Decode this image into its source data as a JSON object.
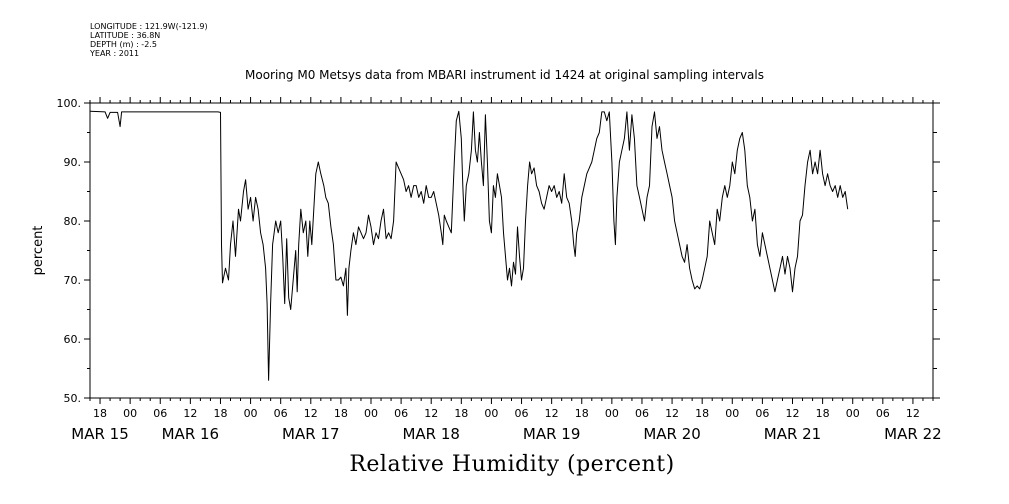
{
  "meta": {
    "longitude": "LONGITUDE : 121.9W(-121.9)",
    "latitude": "LATITUDE : 36.8N",
    "depth": "DEPTH (m) : -2.5",
    "year": "YEAR : 2011"
  },
  "chart_data": {
    "type": "line",
    "title": "Mooring M0 Metsys data from MBARI instrument id 1424 at original sampling intervals",
    "xlabel": "Relative Humidity (percent)",
    "ylabel": "percent",
    "ylim": [
      50,
      100
    ],
    "yticks": [
      "50.",
      "60.",
      "70.",
      "80.",
      "90.",
      "100."
    ],
    "xlim_hours": [
      0,
      168
    ],
    "hour_ticks": [
      {
        "h": 2,
        "label": "18"
      },
      {
        "h": 8,
        "label": "00"
      },
      {
        "h": 14,
        "label": "06"
      },
      {
        "h": 20,
        "label": "12"
      },
      {
        "h": 26,
        "label": "18"
      },
      {
        "h": 32,
        "label": "00"
      },
      {
        "h": 38,
        "label": "06"
      },
      {
        "h": 44,
        "label": "12"
      },
      {
        "h": 50,
        "label": "18"
      },
      {
        "h": 56,
        "label": "00"
      },
      {
        "h": 62,
        "label": "06"
      },
      {
        "h": 68,
        "label": "12"
      },
      {
        "h": 74,
        "label": "18"
      },
      {
        "h": 80,
        "label": "00"
      },
      {
        "h": 86,
        "label": "06"
      },
      {
        "h": 92,
        "label": "12"
      },
      {
        "h": 98,
        "label": "18"
      },
      {
        "h": 104,
        "label": "00"
      },
      {
        "h": 110,
        "label": "06"
      },
      {
        "h": 116,
        "label": "12"
      },
      {
        "h": 122,
        "label": "18"
      },
      {
        "h": 128,
        "label": "00"
      },
      {
        "h": 134,
        "label": "06"
      },
      {
        "h": 140,
        "label": "12"
      },
      {
        "h": 146,
        "label": "18"
      },
      {
        "h": 152,
        "label": "00"
      },
      {
        "h": 158,
        "label": "06"
      },
      {
        "h": 164,
        "label": "12"
      }
    ],
    "day_labels": [
      {
        "h": 2,
        "label": "MAR 15"
      },
      {
        "h": 20,
        "label": "MAR 16"
      },
      {
        "h": 44,
        "label": "MAR 17"
      },
      {
        "h": 68,
        "label": "MAR 18"
      },
      {
        "h": 92,
        "label": "MAR 19"
      },
      {
        "h": 116,
        "label": "MAR 20"
      },
      {
        "h": 140,
        "label": "MAR 21"
      },
      {
        "h": 164,
        "label": "MAR 22"
      }
    ],
    "series": [
      {
        "points": [
          [
            0,
            98.6
          ],
          [
            3,
            98.5
          ],
          [
            3.5,
            97.4
          ],
          [
            4,
            98.4
          ],
          [
            5.5,
            98.4
          ],
          [
            6,
            96.0
          ],
          [
            6.3,
            98.5
          ],
          [
            10,
            98.5
          ],
          [
            18,
            98.5
          ],
          [
            25.5,
            98.5
          ],
          [
            26,
            98.4
          ],
          [
            26.2,
            76
          ],
          [
            26.4,
            69.5
          ],
          [
            27,
            72
          ],
          [
            27.6,
            70
          ],
          [
            28,
            76
          ],
          [
            28.5,
            80
          ],
          [
            29,
            74
          ],
          [
            29.6,
            82
          ],
          [
            30,
            80
          ],
          [
            30.6,
            85
          ],
          [
            31,
            87
          ],
          [
            31.5,
            82
          ],
          [
            32,
            84
          ],
          [
            32.5,
            80
          ],
          [
            33,
            84
          ],
          [
            33.5,
            82
          ],
          [
            34,
            78
          ],
          [
            34.5,
            76
          ],
          [
            35,
            72
          ],
          [
            35.3,
            66
          ],
          [
            35.6,
            53
          ],
          [
            36,
            66
          ],
          [
            36.4,
            76
          ],
          [
            37,
            80
          ],
          [
            37.5,
            78
          ],
          [
            38,
            80
          ],
          [
            38.4,
            74
          ],
          [
            38.8,
            66
          ],
          [
            39.2,
            77
          ],
          [
            39.6,
            67
          ],
          [
            40,
            65
          ],
          [
            40.5,
            70
          ],
          [
            41,
            75
          ],
          [
            41.3,
            68
          ],
          [
            41.6,
            76
          ],
          [
            42,
            82
          ],
          [
            42.5,
            78
          ],
          [
            43,
            80
          ],
          [
            43.4,
            74
          ],
          [
            43.8,
            80
          ],
          [
            44.2,
            76
          ],
          [
            44.6,
            82
          ],
          [
            45,
            88
          ],
          [
            45.5,
            90
          ],
          [
            46,
            88
          ],
          [
            46.6,
            86
          ],
          [
            47,
            84
          ],
          [
            47.5,
            83
          ],
          [
            48,
            79
          ],
          [
            48.5,
            76
          ],
          [
            49,
            70
          ],
          [
            49.5,
            70
          ],
          [
            50,
            70.5
          ],
          [
            50.5,
            69
          ],
          [
            51,
            72
          ],
          [
            51.3,
            64
          ],
          [
            51.6,
            72
          ],
          [
            52,
            75
          ],
          [
            52.5,
            78
          ],
          [
            53,
            76
          ],
          [
            53.5,
            79
          ],
          [
            54,
            78
          ],
          [
            54.5,
            77
          ],
          [
            55,
            78
          ],
          [
            55.5,
            81
          ],
          [
            56,
            79
          ],
          [
            56.5,
            76
          ],
          [
            57,
            78
          ],
          [
            57.5,
            77
          ],
          [
            58,
            80
          ],
          [
            58.5,
            82
          ],
          [
            59,
            77
          ],
          [
            59.5,
            78
          ],
          [
            60,
            77
          ],
          [
            60.5,
            80
          ],
          [
            61,
            90
          ],
          [
            61.5,
            89
          ],
          [
            62,
            88
          ],
          [
            62.5,
            87
          ],
          [
            63,
            85
          ],
          [
            63.5,
            86
          ],
          [
            64,
            84
          ],
          [
            64.5,
            86
          ],
          [
            65,
            86
          ],
          [
            65.5,
            84
          ],
          [
            66,
            85
          ],
          [
            66.5,
            83
          ],
          [
            67,
            86
          ],
          [
            67.5,
            84
          ],
          [
            68,
            84
          ],
          [
            68.5,
            85
          ],
          [
            69,
            83
          ],
          [
            69.5,
            81
          ],
          [
            70,
            78
          ],
          [
            70.3,
            76
          ],
          [
            70.6,
            81
          ],
          [
            71,
            80
          ],
          [
            71.5,
            79
          ],
          [
            72,
            78
          ],
          [
            72.3,
            84
          ],
          [
            72.6,
            90
          ],
          [
            73,
            97
          ],
          [
            73.5,
            98.6
          ],
          [
            74,
            94
          ],
          [
            74.3,
            86
          ],
          [
            74.6,
            80
          ],
          [
            75,
            86
          ],
          [
            75.5,
            88
          ],
          [
            76,
            92
          ],
          [
            76.4,
            98.5
          ],
          [
            76.8,
            92
          ],
          [
            77.2,
            90
          ],
          [
            77.6,
            95
          ],
          [
            78,
            90
          ],
          [
            78.4,
            86
          ],
          [
            78.8,
            98
          ],
          [
            79.2,
            90
          ],
          [
            79.6,
            80
          ],
          [
            80,
            78
          ],
          [
            80.4,
            86
          ],
          [
            80.8,
            84
          ],
          [
            81.2,
            88
          ],
          [
            81.6,
            86
          ],
          [
            82,
            84
          ],
          [
            82.4,
            78
          ],
          [
            82.8,
            74
          ],
          [
            83.2,
            70
          ],
          [
            83.6,
            72
          ],
          [
            84,
            69
          ],
          [
            84.4,
            73
          ],
          [
            84.8,
            71
          ],
          [
            85.2,
            79
          ],
          [
            85.6,
            74
          ],
          [
            86,
            70
          ],
          [
            86.4,
            72
          ],
          [
            86.8,
            80
          ],
          [
            87.2,
            86
          ],
          [
            87.6,
            90
          ],
          [
            88,
            88
          ],
          [
            88.5,
            89
          ],
          [
            89,
            86
          ],
          [
            89.5,
            85
          ],
          [
            90,
            83
          ],
          [
            90.5,
            82
          ],
          [
            91,
            84
          ],
          [
            91.5,
            86
          ],
          [
            92,
            85
          ],
          [
            92.5,
            86
          ],
          [
            93,
            84
          ],
          [
            93.5,
            85
          ],
          [
            94,
            83
          ],
          [
            94.5,
            88
          ],
          [
            95,
            84
          ],
          [
            95.5,
            83
          ],
          [
            96,
            80
          ],
          [
            96.4,
            76
          ],
          [
            96.7,
            74
          ],
          [
            97,
            78
          ],
          [
            97.5,
            80
          ],
          [
            98,
            84
          ],
          [
            98.5,
            86
          ],
          [
            99,
            88
          ],
          [
            99.5,
            89
          ],
          [
            100,
            90
          ],
          [
            100.5,
            92
          ],
          [
            101,
            94
          ],
          [
            101.5,
            95
          ],
          [
            102,
            98.5
          ],
          [
            102.5,
            98.5
          ],
          [
            103,
            97
          ],
          [
            103.5,
            98.5
          ],
          [
            104,
            90
          ],
          [
            104.4,
            80
          ],
          [
            104.7,
            76
          ],
          [
            105,
            84
          ],
          [
            105.5,
            90
          ],
          [
            106,
            92
          ],
          [
            106.5,
            94
          ],
          [
            107,
            98.5
          ],
          [
            107.5,
            92
          ],
          [
            108,
            98
          ],
          [
            108.5,
            94
          ],
          [
            109,
            86
          ],
          [
            109.5,
            84
          ],
          [
            110,
            82
          ],
          [
            110.5,
            80
          ],
          [
            111,
            84
          ],
          [
            111.5,
            86
          ],
          [
            112,
            96
          ],
          [
            112.5,
            98.5
          ],
          [
            113,
            94
          ],
          [
            113.5,
            96
          ],
          [
            114,
            92
          ],
          [
            114.5,
            90
          ],
          [
            115,
            88
          ],
          [
            115.5,
            86
          ],
          [
            116,
            84
          ],
          [
            116.5,
            80
          ],
          [
            117,
            78
          ],
          [
            117.5,
            76
          ],
          [
            118,
            74
          ],
          [
            118.5,
            73
          ],
          [
            119,
            76
          ],
          [
            119.5,
            72
          ],
          [
            120,
            70
          ],
          [
            120.5,
            68.5
          ],
          [
            121,
            69
          ],
          [
            121.5,
            68.5
          ],
          [
            122,
            70
          ],
          [
            122.5,
            72
          ],
          [
            123,
            74
          ],
          [
            123.5,
            80
          ],
          [
            124,
            78
          ],
          [
            124.5,
            76
          ],
          [
            125,
            82
          ],
          [
            125.5,
            80
          ],
          [
            126,
            84
          ],
          [
            126.5,
            86
          ],
          [
            127,
            84
          ],
          [
            127.5,
            86
          ],
          [
            128,
            90
          ],
          [
            128.5,
            88
          ],
          [
            129,
            92
          ],
          [
            129.5,
            94
          ],
          [
            130,
            95
          ],
          [
            130.5,
            92
          ],
          [
            131,
            86
          ],
          [
            131.5,
            84
          ],
          [
            132,
            80
          ],
          [
            132.5,
            82
          ],
          [
            133,
            76
          ],
          [
            133.5,
            74
          ],
          [
            134,
            78
          ],
          [
            134.5,
            76
          ],
          [
            135,
            74
          ],
          [
            135.5,
            72
          ],
          [
            136,
            70
          ],
          [
            136.5,
            68
          ],
          [
            137,
            70
          ],
          [
            137.5,
            72
          ],
          [
            138,
            74
          ],
          [
            138.5,
            71
          ],
          [
            139,
            74
          ],
          [
            139.5,
            72
          ],
          [
            140,
            68
          ],
          [
            140.5,
            72
          ],
          [
            141,
            74
          ],
          [
            141.5,
            80
          ],
          [
            142,
            81
          ],
          [
            142.5,
            86
          ],
          [
            143,
            90
          ],
          [
            143.5,
            92
          ],
          [
            144,
            88
          ],
          [
            144.5,
            90
          ],
          [
            145,
            88
          ],
          [
            145.5,
            92
          ],
          [
            146,
            88
          ],
          [
            146.5,
            86
          ],
          [
            147,
            88
          ],
          [
            147.5,
            86
          ],
          [
            148,
            85
          ],
          [
            148.5,
            86
          ],
          [
            149,
            84
          ],
          [
            149.5,
            86
          ],
          [
            150,
            84
          ],
          [
            150.5,
            85
          ],
          [
            151,
            82
          ]
        ]
      }
    ]
  }
}
